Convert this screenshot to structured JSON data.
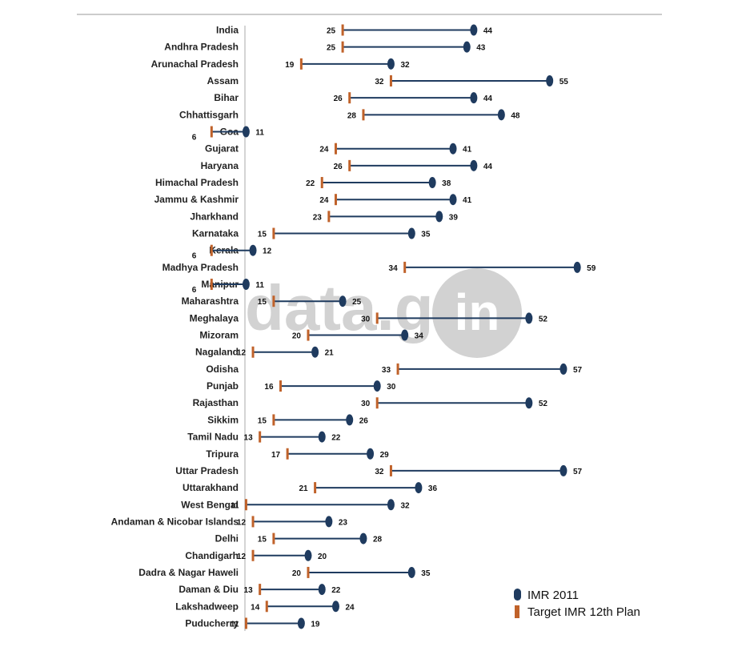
{
  "colors": {
    "imr_2011": "#1f3b5f",
    "target": "#c0622a",
    "connector": "#1f3b5f",
    "axis": "#aaaaaa",
    "watermark": "#d2d2d2"
  },
  "watermark": {
    "text_left": "data.gov.",
    "text_right": "in"
  },
  "legend": {
    "imr_2011_label": "IMR 2011",
    "target_label": "Target IMR 12th Plan"
  },
  "chart_data": {
    "type": "dumbbell",
    "title": "",
    "xlim": [
      0,
      65
    ],
    "grid": false,
    "legend_position": "bottom-right",
    "series": [
      {
        "name": "IMR 2011",
        "key": "imr_2011"
      },
      {
        "name": "Target IMR 12th Plan",
        "key": "target"
      }
    ],
    "rows": [
      {
        "state": "India",
        "target": 25,
        "imr_2011": 44
      },
      {
        "state": "Andhra Pradesh",
        "target": 25,
        "imr_2011": 43
      },
      {
        "state": "Arunachal Pradesh",
        "target": 19,
        "imr_2011": 32
      },
      {
        "state": "Assam",
        "target": 32,
        "imr_2011": 55
      },
      {
        "state": "Bihar",
        "target": 26,
        "imr_2011": 44
      },
      {
        "state": "Chhattisgarh",
        "target": 28,
        "imr_2011": 48
      },
      {
        "state": "Goa",
        "target": 6,
        "imr_2011": 11
      },
      {
        "state": "Gujarat",
        "target": 24,
        "imr_2011": 41
      },
      {
        "state": "Haryana",
        "target": 26,
        "imr_2011": 44
      },
      {
        "state": "Himachal Pradesh",
        "target": 22,
        "imr_2011": 38
      },
      {
        "state": "Jammu & Kashmir",
        "target": 24,
        "imr_2011": 41
      },
      {
        "state": "Jharkhand",
        "target": 23,
        "imr_2011": 39
      },
      {
        "state": "Karnataka",
        "target": 15,
        "imr_2011": 35
      },
      {
        "state": "Kerala",
        "target": 6,
        "imr_2011": 12
      },
      {
        "state": "Madhya Pradesh",
        "target": 34,
        "imr_2011": 59
      },
      {
        "state": "Manipur",
        "target": 6,
        "imr_2011": 11
      },
      {
        "state": "Maharashtra",
        "target": 15,
        "imr_2011": 25
      },
      {
        "state": "Meghalaya",
        "target": 30,
        "imr_2011": 52
      },
      {
        "state": "Mizoram",
        "target": 20,
        "imr_2011": 34
      },
      {
        "state": "Nagaland",
        "target": 12,
        "imr_2011": 21
      },
      {
        "state": "Odisha",
        "target": 33,
        "imr_2011": 57
      },
      {
        "state": "Punjab",
        "target": 16,
        "imr_2011": 30
      },
      {
        "state": "Rajasthan",
        "target": 30,
        "imr_2011": 52
      },
      {
        "state": "Sikkim",
        "target": 15,
        "imr_2011": 26
      },
      {
        "state": "Tamil Nadu",
        "target": 13,
        "imr_2011": 22
      },
      {
        "state": "Tripura",
        "target": 17,
        "imr_2011": 29
      },
      {
        "state": "Uttar Pradesh",
        "target": 32,
        "imr_2011": 57
      },
      {
        "state": "Uttarakhand",
        "target": 21,
        "imr_2011": 36
      },
      {
        "state": "West Bengal",
        "target": 11,
        "imr_2011": 32
      },
      {
        "state": "Andaman & Nicobar Islands",
        "target": 12,
        "imr_2011": 23
      },
      {
        "state": "Delhi",
        "target": 15,
        "imr_2011": 28
      },
      {
        "state": "Chandigarh",
        "target": 12,
        "imr_2011": 20
      },
      {
        "state": "Dadra & Nagar Haweli",
        "target": 20,
        "imr_2011": 35
      },
      {
        "state": "Daman & Diu",
        "target": 13,
        "imr_2011": 22
      },
      {
        "state": "Lakshadweep",
        "target": 14,
        "imr_2011": 24
      },
      {
        "state": "Puducherry",
        "target": 11,
        "imr_2011": 19
      }
    ]
  }
}
